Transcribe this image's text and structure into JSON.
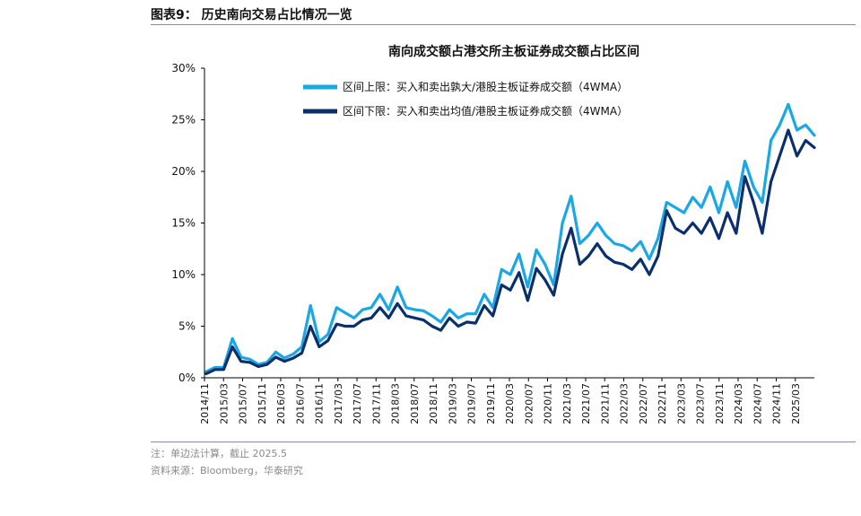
{
  "figure": {
    "title": "图表9：  历史南向交易占比情况一览",
    "note": "注：单边法计算，截止 2025.5",
    "source": "资料来源：Bloomberg，华泰研究"
  },
  "colors": {
    "upper": "#1aa7e6",
    "lower": "#0b2f6b",
    "rule": "#7f8fa9"
  },
  "chart_data": {
    "type": "line",
    "title": "南向成交额占港交所主板证券成交额占比区间",
    "xlabel": "",
    "ylabel": "",
    "ylim": [
      0,
      30
    ],
    "yticks": [
      "0%",
      "5%",
      "10%",
      "15%",
      "20%",
      "25%",
      "30%"
    ],
    "x_tick_labels": [
      "2014/11",
      "2015/03",
      "2015/07",
      "2015/11",
      "2016/03",
      "2016/07",
      "2016/11",
      "2017/03",
      "2017/07",
      "2017/11",
      "2018/03",
      "2018/07",
      "2018/11",
      "2019/03",
      "2019/07",
      "2019/11",
      "2020/03",
      "2020/07",
      "2020/11",
      "2021/03",
      "2021/07",
      "2021/11",
      "2022/03",
      "2022/07",
      "2022/11",
      "2023/03",
      "2023/07",
      "2023/11",
      "2024/03",
      "2024/07",
      "2024/11",
      "2025/03"
    ],
    "legend": {
      "position": "top-left"
    },
    "grid": false,
    "series": [
      {
        "name": "区间上限：买入和卖出孰大/港股主板证券成交额（4WMA）",
        "color": "#1aa7e6",
        "values": [
          0.6,
          1.0,
          1.0,
          3.8,
          2.0,
          1.8,
          1.3,
          1.5,
          2.5,
          1.9,
          2.3,
          3.0,
          7.0,
          3.5,
          4.2,
          6.8,
          6.3,
          5.8,
          6.6,
          6.8,
          8.1,
          6.6,
          8.8,
          6.8,
          6.6,
          6.5,
          6.0,
          5.4,
          6.6,
          5.8,
          6.2,
          6.2,
          8.1,
          6.8,
          10.5,
          10.0,
          12.0,
          8.8,
          12.4,
          11.0,
          9.0,
          15.0,
          17.6,
          13.0,
          13.8,
          15.0,
          13.8,
          13.0,
          12.8,
          12.3,
          13.2,
          11.5,
          13.5,
          17.0,
          16.5,
          16.0,
          17.5,
          16.5,
          18.5,
          16.0,
          19.0,
          16.5,
          21.0,
          18.5,
          17.0,
          23.0,
          24.5,
          26.5,
          24.0,
          24.5,
          23.5
        ]
      },
      {
        "name": "区间下限：买入和卖出均值/港股主板证券成交额（4WMA）",
        "color": "#0b2f6b",
        "values": [
          0.4,
          0.8,
          0.8,
          3.0,
          1.6,
          1.5,
          1.1,
          1.3,
          2.0,
          1.6,
          1.9,
          2.4,
          5.0,
          3.0,
          3.6,
          5.2,
          5.0,
          5.0,
          5.6,
          5.8,
          6.8,
          5.8,
          7.2,
          6.0,
          5.8,
          5.6,
          5.0,
          4.6,
          5.8,
          5.0,
          5.4,
          5.3,
          7.0,
          6.0,
          9.0,
          8.5,
          10.2,
          7.5,
          10.6,
          9.5,
          8.0,
          12.0,
          14.5,
          11.0,
          11.8,
          13.0,
          11.8,
          11.2,
          11.0,
          10.5,
          11.5,
          10.0,
          11.8,
          16.2,
          14.5,
          14.0,
          15.0,
          14.0,
          15.5,
          13.5,
          16.0,
          14.0,
          19.5,
          17.0,
          14.0,
          19.0,
          21.5,
          24.0,
          21.5,
          23.0,
          22.3
        ]
      }
    ]
  }
}
